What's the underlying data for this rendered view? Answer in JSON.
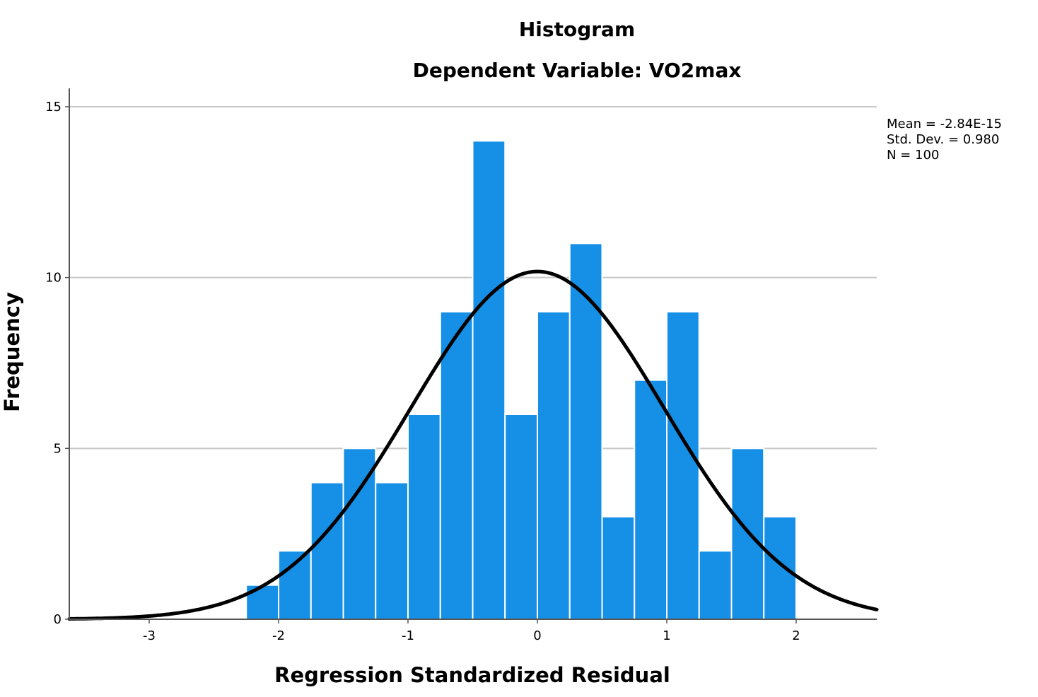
{
  "chart_data": {
    "type": "bar",
    "title": "Histogram",
    "subtitle": "Dependent Variable: VO2max",
    "xlabel": "Regression Standardized Residual",
    "ylabel": "Frequency",
    "xlim": [
      -3.6,
      2.65
    ],
    "ylim": [
      0,
      15.5
    ],
    "x_ticks": [
      {
        "value": -3,
        "label": "-3"
      },
      {
        "value": -2,
        "label": "-2"
      },
      {
        "value": -1,
        "label": "-1"
      },
      {
        "value": 0,
        "label": "0"
      },
      {
        "value": 1,
        "label": "1"
      },
      {
        "value": 2,
        "label": "2"
      }
    ],
    "y_ticks": [
      {
        "value": 0,
        "label": "0"
      },
      {
        "value": 5,
        "label": "5"
      },
      {
        "value": 10,
        "label": "10"
      },
      {
        "value": 15,
        "label": "15"
      }
    ],
    "grid": true,
    "bins": [
      {
        "start": -2.25,
        "end": -2.0,
        "count": 1
      },
      {
        "start": -2.0,
        "end": -1.75,
        "count": 2
      },
      {
        "start": -1.75,
        "end": -1.5,
        "count": 4
      },
      {
        "start": -1.5,
        "end": -1.25,
        "count": 5
      },
      {
        "start": -1.25,
        "end": -1.0,
        "count": 4
      },
      {
        "start": -1.0,
        "end": -0.75,
        "count": 6
      },
      {
        "start": -0.75,
        "end": -0.5,
        "count": 9
      },
      {
        "start": -0.5,
        "end": -0.25,
        "count": 14
      },
      {
        "start": -0.25,
        "end": 0.0,
        "count": 6
      },
      {
        "start": 0.0,
        "end": 0.25,
        "count": 9
      },
      {
        "start": 0.25,
        "end": 0.5,
        "count": 11
      },
      {
        "start": 0.5,
        "end": 0.75,
        "count": 3
      },
      {
        "start": 0.75,
        "end": 1.0,
        "count": 7
      },
      {
        "start": 1.0,
        "end": 1.25,
        "count": 9
      },
      {
        "start": 1.25,
        "end": 1.5,
        "count": 2
      },
      {
        "start": 1.5,
        "end": 1.75,
        "count": 5
      },
      {
        "start": 1.75,
        "end": 2.0,
        "count": 3
      }
    ],
    "normal_curve": {
      "mean": 0,
      "std_dev": 0.98,
      "n": 100,
      "bin_width": 0.25
    },
    "stats_lines": [
      "Mean = -2.84E-15",
      "Std. Dev. = 0.980",
      "N = 100"
    ],
    "colors": {
      "bar": "#1590E6",
      "bar_edge": "#ffffff",
      "curve": "#000000",
      "grid": "#c8c8c8",
      "axis": "#555555"
    }
  }
}
